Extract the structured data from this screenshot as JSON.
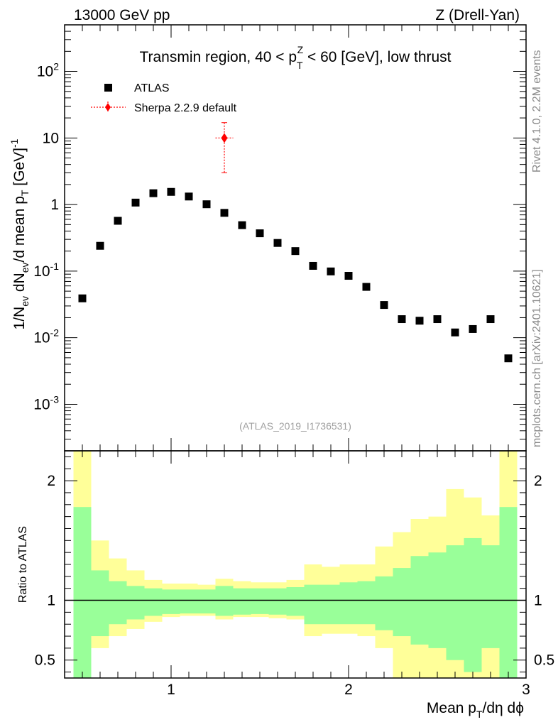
{
  "header": {
    "left": "13000 GeV pp",
    "right": "Z (Drell-Yan)"
  },
  "side_labels": {
    "rivet": "Rivet 4.1.0,  2.2M events",
    "mcplots": "mcplots.cern.ch [arXiv:2401.10621]"
  },
  "chart_data": {
    "type": "scatter",
    "title": "Transmin region, 40 < p_T^Z < 60 [GeV], low thrust",
    "analysis_tag": "(ATLAS_2019_I1736531)",
    "xlabel": "Mean p_T/dη dϕ",
    "ylabel": "1/N_ev dN_ev/d mean p_T [GeV]^-1",
    "xlim": [
      0.4,
      3.0
    ],
    "ylim": [
      0.0002,
      500
    ],
    "yscale": "log",
    "x_ticks": [
      "1",
      "2",
      "3"
    ],
    "y_ticks": [
      "10^-3",
      "10^-2",
      "10^-1",
      "1",
      "10",
      "10^2"
    ],
    "legend": {
      "position": "top-left",
      "entries": [
        "ATLAS",
        "Sherpa 2.2.9 default"
      ]
    },
    "bin_edges": [
      0.45,
      0.55,
      0.65,
      0.75,
      0.85,
      0.95,
      1.05,
      1.15,
      1.25,
      1.35,
      1.45,
      1.55,
      1.65,
      1.75,
      1.85,
      1.95,
      2.05,
      2.15,
      2.25,
      2.35,
      2.45,
      2.55,
      2.65,
      2.75,
      2.85,
      2.95
    ],
    "series": [
      {
        "name": "ATLAS",
        "color": "#000000",
        "marker": "square",
        "x": [
          0.5,
          0.6,
          0.7,
          0.8,
          0.9,
          1.0,
          1.1,
          1.2,
          1.3,
          1.4,
          1.5,
          1.6,
          1.7,
          1.8,
          1.9,
          2.0,
          2.1,
          2.2,
          2.3,
          2.4,
          2.5,
          2.6,
          2.7,
          2.8,
          2.9
        ],
        "y": [
          0.039,
          0.24,
          0.57,
          1.07,
          1.48,
          1.55,
          1.32,
          1.01,
          0.75,
          0.49,
          0.37,
          0.265,
          0.2,
          0.12,
          0.099,
          0.085,
          0.058,
          0.031,
          0.019,
          0.018,
          0.019,
          0.012,
          0.0135,
          0.019,
          0.0049
        ]
      },
      {
        "name": "Sherpa 2.2.9 default",
        "color": "#ff0000",
        "marker": "diamond",
        "x": [
          1.3
        ],
        "y": [
          10
        ],
        "yerr_low": [
          7.0
        ],
        "yerr_high": [
          7.0
        ],
        "xerr": [
          0.05
        ]
      }
    ],
    "ratio": {
      "ylabel": "Ratio to ATLAS",
      "ylim": [
        0.35,
        2.25
      ],
      "y_ticks": [
        "0.5",
        "1",
        "2"
      ],
      "band_inner_color": "#99ff99",
      "band_outer_color": "#ffff99",
      "inner_low": [
        0.3,
        0.7,
        0.8,
        0.84,
        0.87,
        0.885,
        0.89,
        0.89,
        0.87,
        0.88,
        0.885,
        0.88,
        0.87,
        0.8,
        0.8,
        0.8,
        0.8,
        0.75,
        0.7,
        0.63,
        0.6,
        0.5,
        0.4,
        0.6,
        0.3
      ],
      "inner_high": [
        1.78,
        1.25,
        1.16,
        1.12,
        1.1,
        1.09,
        1.09,
        1.09,
        1.12,
        1.1,
        1.1,
        1.1,
        1.11,
        1.13,
        1.13,
        1.15,
        1.16,
        1.2,
        1.27,
        1.37,
        1.4,
        1.46,
        1.52,
        1.46,
        1.78
      ],
      "outer_low": [
        0.3,
        0.6,
        0.7,
        0.76,
        0.82,
        0.86,
        0.87,
        0.87,
        0.84,
        0.86,
        0.86,
        0.85,
        0.84,
        0.7,
        0.72,
        0.72,
        0.7,
        0.6,
        0.3,
        0.3,
        0.3,
        0.3,
        0.3,
        0.3,
        0.3
      ],
      "outer_high": [
        2.25,
        1.5,
        1.35,
        1.25,
        1.17,
        1.14,
        1.14,
        1.13,
        1.18,
        1.16,
        1.15,
        1.15,
        1.17,
        1.3,
        1.28,
        1.3,
        1.3,
        1.45,
        1.57,
        1.68,
        1.7,
        1.93,
        1.86,
        1.71,
        2.25
      ]
    }
  }
}
